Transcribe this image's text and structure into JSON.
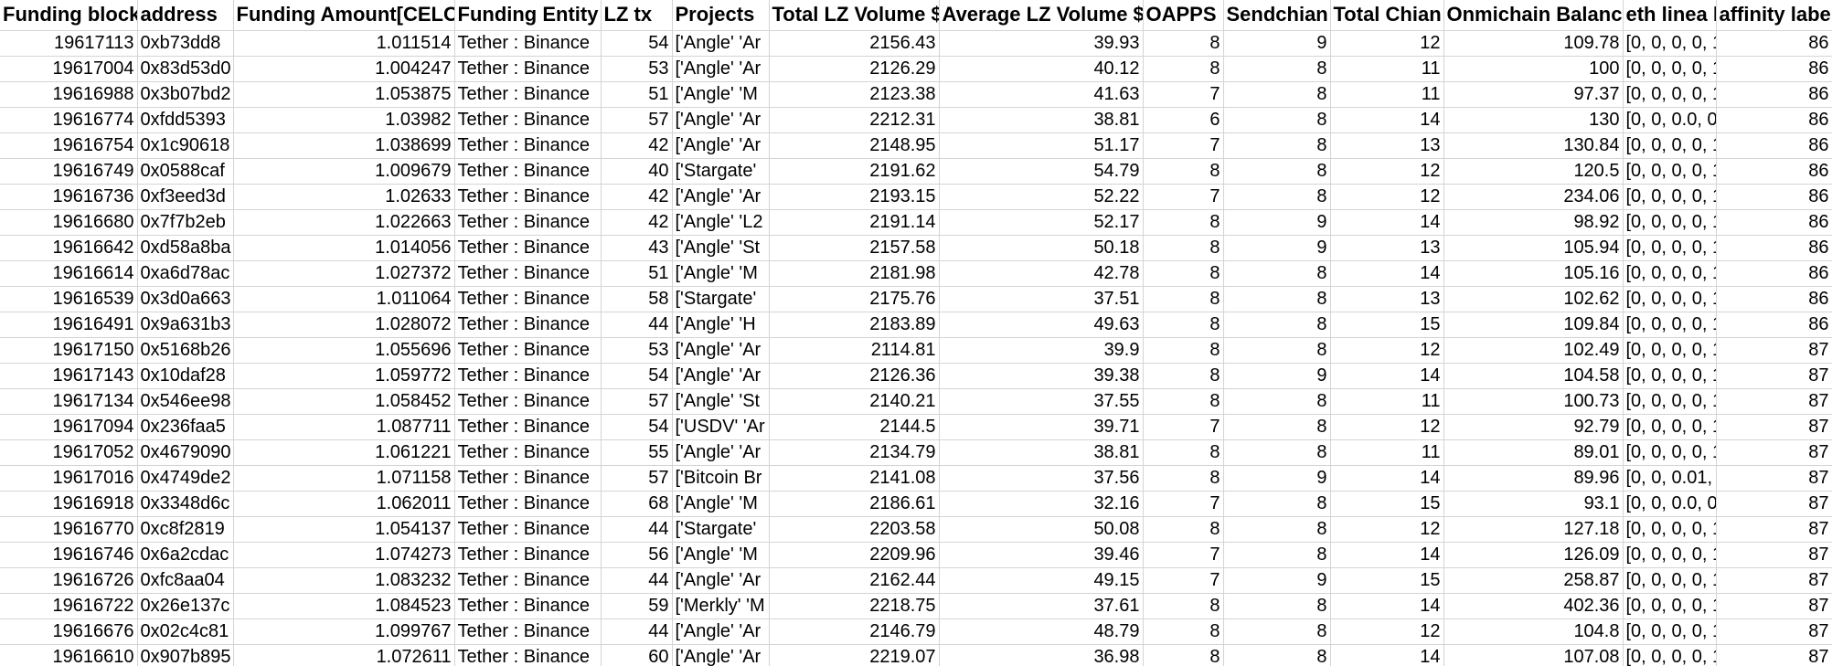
{
  "headers": [
    "Funding block",
    "address",
    "Funding Amount[CELO]",
    "Funding Entity",
    "LZ tx",
    "Projects",
    "Total LZ Volume $",
    "Average LZ Volume $",
    "OAPPS",
    "Sendchian",
    "Total Chian",
    "Onmichain Balance",
    "eth linea b",
    "affinity label"
  ],
  "rows": [
    [
      "19617113",
      "0xb73dd8",
      "1.011514",
      "Tether : Binance",
      "54",
      "['Angle' 'Ar",
      "2156.43",
      "39.93",
      "8",
      "9",
      "12",
      "109.78",
      "[0, 0, 0, 0, 1",
      "86"
    ],
    [
      "19617004",
      "0x83d53d0",
      "1.004247",
      "Tether : Binance",
      "53",
      "['Angle' 'Ar",
      "2126.29",
      "40.12",
      "8",
      "8",
      "11",
      "100",
      "[0, 0, 0, 0, 1",
      "86"
    ],
    [
      "19616988",
      "0x3b07bd2",
      "1.053875",
      "Tether : Binance",
      "51",
      "['Angle' 'M",
      "2123.38",
      "41.63",
      "7",
      "8",
      "11",
      "97.37",
      "[0, 0, 0, 0, 1",
      "86"
    ],
    [
      "19616774",
      "0xfdd5393",
      "1.03982",
      "Tether : Binance",
      "57",
      "['Angle' 'Ar",
      "2212.31",
      "38.81",
      "6",
      "8",
      "14",
      "130",
      "[0, 0, 0.0, 0",
      "86"
    ],
    [
      "19616754",
      "0x1c90618",
      "1.038699",
      "Tether : Binance",
      "42",
      "['Angle' 'Ar",
      "2148.95",
      "51.17",
      "7",
      "8",
      "13",
      "130.84",
      "[0, 0, 0, 0, 1",
      "86"
    ],
    [
      "19616749",
      "0x0588caf",
      "1.009679",
      "Tether : Binance",
      "40",
      "['Stargate'",
      "2191.62",
      "54.79",
      "8",
      "8",
      "12",
      "120.5",
      "[0, 0, 0, 0, 1",
      "86"
    ],
    [
      "19616736",
      "0xf3eed3d",
      "1.02633",
      "Tether : Binance",
      "42",
      "['Angle' 'Ar",
      "2193.15",
      "52.22",
      "7",
      "8",
      "12",
      "234.06",
      "[0, 0, 0, 0, 1",
      "86"
    ],
    [
      "19616680",
      "0x7f7b2eb",
      "1.022663",
      "Tether : Binance",
      "42",
      "['Angle' 'L2",
      "2191.14",
      "52.17",
      "8",
      "9",
      "14",
      "98.92",
      "[0, 0, 0, 0, 1",
      "86"
    ],
    [
      "19616642",
      "0xd58a8ba",
      "1.014056",
      "Tether : Binance",
      "43",
      "['Angle' 'St",
      "2157.58",
      "50.18",
      "8",
      "9",
      "13",
      "105.94",
      "[0, 0, 0, 0, 1",
      "86"
    ],
    [
      "19616614",
      "0xa6d78ac",
      "1.027372",
      "Tether : Binance",
      "51",
      "['Angle' 'M",
      "2181.98",
      "42.78",
      "8",
      "8",
      "14",
      "105.16",
      "[0, 0, 0, 0, 1",
      "86"
    ],
    [
      "19616539",
      "0x3d0a663",
      "1.011064",
      "Tether : Binance",
      "58",
      "['Stargate'",
      "2175.76",
      "37.51",
      "8",
      "8",
      "13",
      "102.62",
      "[0, 0, 0, 0, 1",
      "86"
    ],
    [
      "19616491",
      "0x9a631b3",
      "1.028072",
      "Tether : Binance",
      "44",
      "['Angle' 'H",
      "2183.89",
      "49.63",
      "8",
      "8",
      "15",
      "109.84",
      "[0, 0, 0, 0, 1",
      "86"
    ],
    [
      "19617150",
      "0x5168b26",
      "1.055696",
      "Tether : Binance",
      "53",
      "['Angle' 'Ar",
      "2114.81",
      "39.9",
      "8",
      "8",
      "12",
      "102.49",
      "[0, 0, 0, 0, 1",
      "87"
    ],
    [
      "19617143",
      "0x10daf28",
      "1.059772",
      "Tether : Binance",
      "54",
      "['Angle' 'Ar",
      "2126.36",
      "39.38",
      "8",
      "9",
      "14",
      "104.58",
      "[0, 0, 0, 0, 1",
      "87"
    ],
    [
      "19617134",
      "0x546ee98",
      "1.058452",
      "Tether : Binance",
      "57",
      "['Angle' 'St",
      "2140.21",
      "37.55",
      "8",
      "8",
      "11",
      "100.73",
      "[0, 0, 0, 0, 1",
      "87"
    ],
    [
      "19617094",
      "0x236faa5",
      "1.087711",
      "Tether : Binance",
      "54",
      "['USDV' 'Ar",
      "2144.5",
      "39.71",
      "7",
      "8",
      "12",
      "92.79",
      "[0, 0, 0, 0, 1",
      "87"
    ],
    [
      "19617052",
      "0x4679090",
      "1.061221",
      "Tether : Binance",
      "55",
      "['Angle' 'Ar",
      "2134.79",
      "38.81",
      "8",
      "8",
      "11",
      "89.01",
      "[0, 0, 0, 0, 1",
      "87"
    ],
    [
      "19617016",
      "0x4749de2",
      "1.071158",
      "Tether : Binance",
      "57",
      "['Bitcoin Br",
      "2141.08",
      "37.56",
      "8",
      "9",
      "14",
      "89.96",
      "[0, 0, 0.01,",
      "87"
    ],
    [
      "19616918",
      "0x3348d6c",
      "1.062011",
      "Tether : Binance",
      "68",
      "['Angle' 'M",
      "2186.61",
      "32.16",
      "7",
      "8",
      "15",
      "93.1",
      "[0, 0, 0.0, 0",
      "87"
    ],
    [
      "19616770",
      "0xc8f2819",
      "1.054137",
      "Tether : Binance",
      "44",
      "['Stargate'",
      "2203.58",
      "50.08",
      "8",
      "8",
      "12",
      "127.18",
      "[0, 0, 0, 0, 1",
      "87"
    ],
    [
      "19616746",
      "0x6a2cdac",
      "1.074273",
      "Tether : Binance",
      "56",
      "['Angle' 'M",
      "2209.96",
      "39.46",
      "7",
      "8",
      "14",
      "126.09",
      "[0, 0, 0, 0, 1",
      "87"
    ],
    [
      "19616726",
      "0xfc8aa04",
      "1.083232",
      "Tether : Binance",
      "44",
      "['Angle' 'Ar",
      "2162.44",
      "49.15",
      "7",
      "9",
      "15",
      "258.87",
      "[0, 0, 0, 0, 1",
      "87"
    ],
    [
      "19616722",
      "0x26e137c",
      "1.084523",
      "Tether : Binance",
      "59",
      "['Merkly' 'M",
      "2218.75",
      "37.61",
      "8",
      "8",
      "14",
      "402.36",
      "[0, 0, 0, 0, 1",
      "87"
    ],
    [
      "19616676",
      "0x02c4c81",
      "1.099767",
      "Tether : Binance",
      "44",
      "['Angle' 'Ar",
      "2146.79",
      "48.79",
      "8",
      "8",
      "12",
      "104.8",
      "[0, 0, 0, 0, 1",
      "87"
    ],
    [
      "19616610",
      "0x907b895",
      "1.072611",
      "Tether : Binance",
      "60",
      "['Angle' 'Ar",
      "2219.07",
      "36.98",
      "8",
      "8",
      "14",
      "107.08",
      "[0, 0, 0, 0, 1",
      "87"
    ]
  ]
}
